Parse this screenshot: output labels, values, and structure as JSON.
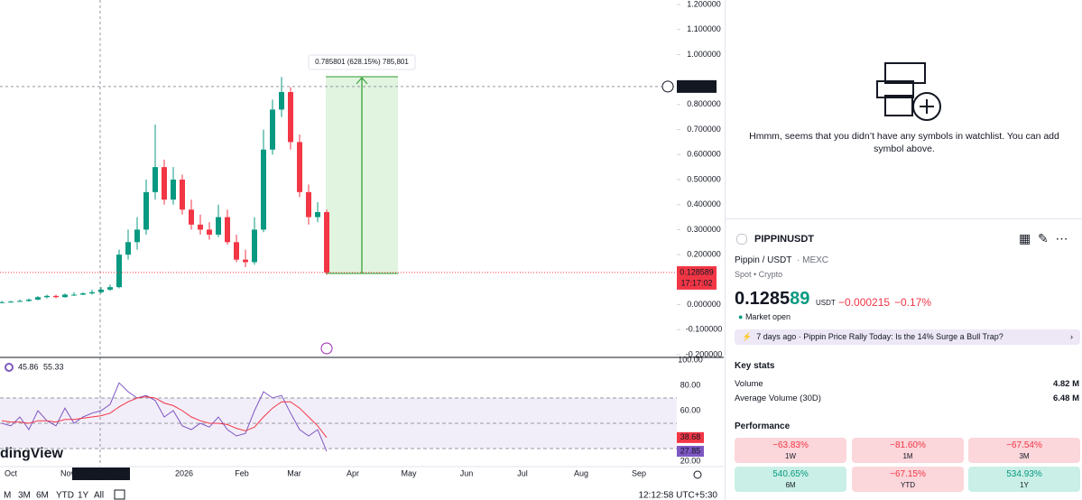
{
  "chart_data": {
    "type": "candlestick",
    "open": [
      0.009,
      0.01,
      0.012,
      0.015,
      0.02,
      0.03,
      0.035,
      0.03,
      0.04,
      0.04,
      0.045,
      0.05,
      0.06,
      0.07,
      0.2,
      0.25,
      0.3,
      0.45,
      0.55,
      0.42,
      0.5,
      0.38,
      0.32,
      0.3,
      0.28,
      0.35,
      0.25,
      0.18,
      0.17,
      0.3,
      0.62,
      0.78,
      0.85,
      0.65,
      0.45,
      0.35,
      0.37
    ],
    "high": [
      0.015,
      0.016,
      0.02,
      0.025,
      0.035,
      0.04,
      0.04,
      0.045,
      0.05,
      0.05,
      0.06,
      0.07,
      0.08,
      0.22,
      0.3,
      0.35,
      0.5,
      0.72,
      0.58,
      0.55,
      0.52,
      0.42,
      0.36,
      0.33,
      0.4,
      0.38,
      0.28,
      0.22,
      0.35,
      0.7,
      0.82,
      0.91,
      0.87,
      0.68,
      0.48,
      0.41,
      0.38
    ],
    "low": [
      0.005,
      0.008,
      0.01,
      0.012,
      0.018,
      0.025,
      0.025,
      0.028,
      0.035,
      0.038,
      0.04,
      0.045,
      0.055,
      0.065,
      0.18,
      0.22,
      0.28,
      0.42,
      0.4,
      0.4,
      0.36,
      0.3,
      0.28,
      0.26,
      0.27,
      0.24,
      0.17,
      0.15,
      0.16,
      0.29,
      0.6,
      0.75,
      0.62,
      0.43,
      0.32,
      0.33,
      0.12
    ],
    "close": [
      0.01,
      0.012,
      0.015,
      0.02,
      0.03,
      0.035,
      0.03,
      0.04,
      0.04,
      0.045,
      0.05,
      0.06,
      0.07,
      0.2,
      0.25,
      0.3,
      0.45,
      0.55,
      0.42,
      0.5,
      0.38,
      0.32,
      0.3,
      0.28,
      0.35,
      0.25,
      0.18,
      0.17,
      0.3,
      0.62,
      0.78,
      0.85,
      0.65,
      0.45,
      0.35,
      0.37,
      0.1286
    ],
    "up_color": "#089981",
    "down_color": "#f23645",
    "ylim": [
      -0.2,
      1.2
    ],
    "yticks": [
      {
        "value": 1.2,
        "label": "1.200000"
      },
      {
        "value": 1.1,
        "label": "1.100000"
      },
      {
        "value": 1.0,
        "label": "1.000000"
      },
      {
        "value": 0.8,
        "label": "0.800000"
      },
      {
        "value": 0.7,
        "label": "0.700000"
      },
      {
        "value": 0.6,
        "label": "0.600000"
      },
      {
        "value": 0.5,
        "label": "0.500000"
      },
      {
        "value": 0.4,
        "label": "0.400000"
      },
      {
        "value": 0.3,
        "label": "0.300000"
      },
      {
        "value": 0.2,
        "label": "0.200000"
      },
      {
        "value": 0.0,
        "label": "0.000000"
      },
      {
        "value": -0.1,
        "label": "-0.100000"
      },
      {
        "value": -0.2,
        "label": "-0.200000"
      }
    ],
    "crosshair_price": {
      "value": 0.872133,
      "label": "0.872133"
    },
    "last_price": {
      "value": 0.128589,
      "label": "0.128589"
    },
    "countdown": "17:17:02",
    "measure_label": "0.785801 (628.15%) 785,801",
    "x_labels": [
      "Oct",
      "Nov",
      "2026",
      "Feb",
      "Mar",
      "Apr",
      "May",
      "Jun",
      "Jul",
      "Aug",
      "Sep"
    ],
    "crosshair_date": "Tue 18 Nov '25",
    "watermark": "dingView",
    "rsi": {
      "header": [
        "45.86",
        "55.33"
      ],
      "ylim": [
        20,
        100
      ],
      "yticks": [
        {
          "value": 100,
          "label": "100.00"
        },
        {
          "value": 80,
          "label": "80.00"
        },
        {
          "value": 60,
          "label": "60.00"
        },
        {
          "value": 20,
          "label": "20.00"
        }
      ],
      "levels": [
        70,
        50,
        30
      ],
      "series": [
        {
          "color": "#7e57c2",
          "values": [
            50,
            48,
            55,
            45,
            60,
            52,
            48,
            62,
            50,
            55,
            58,
            60,
            65,
            82,
            75,
            70,
            72,
            68,
            55,
            60,
            48,
            45,
            50,
            47,
            55,
            45,
            40,
            42,
            60,
            75,
            70,
            72,
            58,
            45,
            40,
            45,
            27.85
          ]
        },
        {
          "color": "#f23645",
          "values": [
            52,
            51,
            51,
            50,
            52,
            52,
            51,
            53,
            53,
            54,
            55,
            56,
            58,
            63,
            67,
            70,
            71,
            70,
            66,
            64,
            60,
            55,
            52,
            50,
            50,
            49,
            46,
            44,
            47,
            55,
            62,
            67,
            67,
            62,
            55,
            48,
            38.68
          ]
        }
      ],
      "badges": [
        {
          "value": 38.68,
          "label": "38.68"
        },
        {
          "value": 27.85,
          "label": "27.85"
        }
      ]
    }
  },
  "toolbar": {
    "ranges": [
      "M",
      "3M",
      "6M",
      "YTD",
      "1Y",
      "All"
    ],
    "time": "12:12:58 UTC+5:30"
  },
  "watchlist": {
    "empty_text": "Hmmm, seems that you didn’t have any symbols in watchlist. You can add symbol above."
  },
  "symbol": {
    "ticker": "PIPPINUSDT",
    "pair": "Pippin / USDT",
    "exchange": "· MEXC",
    "kind": "Spot • Crypto",
    "price_main": "0.1285",
    "price_tail": "89",
    "currency": "USDT",
    "change": "−0.000215",
    "change_pct": "−0.17%",
    "status": "Market open",
    "news": "7 days ago · Pippin Price Rally Today: Is the 14% Surge a Bull Trap?"
  },
  "key_stats": {
    "title": "Key stats",
    "rows": [
      [
        "Volume",
        "4.82 M"
      ],
      [
        "Average Volume (30D)",
        "6.48 M"
      ]
    ]
  },
  "performance": {
    "title": "Performance",
    "cells": [
      [
        "−63.83%",
        "1W"
      ],
      [
        "−81.60%",
        "1M"
      ],
      [
        "−67.54%",
        "3M"
      ],
      [
        "540.65%",
        "6M"
      ],
      [
        "−67.15%",
        "YTD"
      ],
      [
        "534.93%",
        "1Y"
      ]
    ]
  }
}
